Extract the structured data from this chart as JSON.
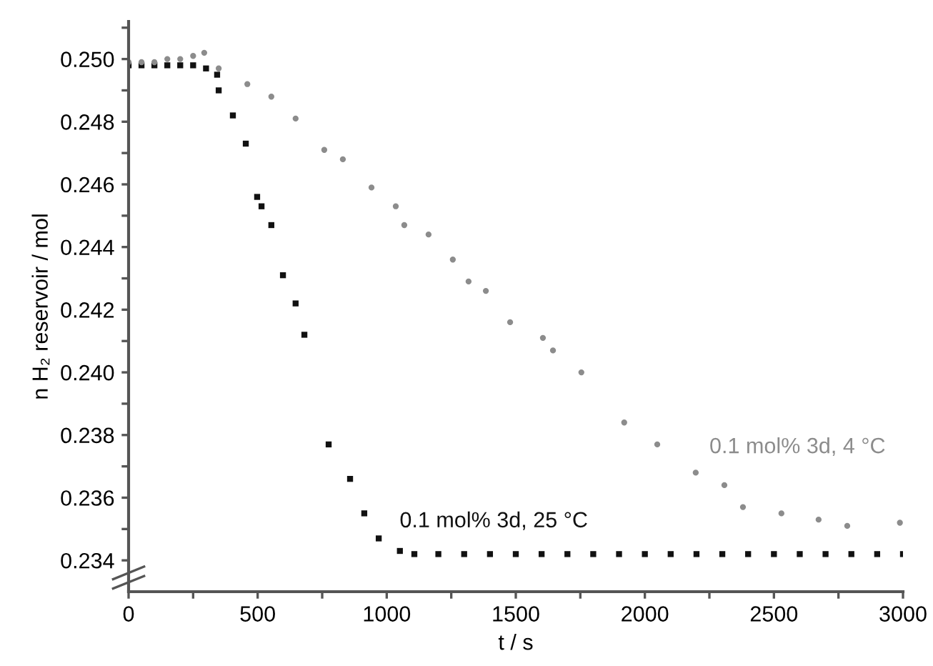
{
  "chart_data": {
    "type": "scatter",
    "xlabel": "t / s",
    "ylabel": "n H₂ reservoir / mol",
    "xlim": [
      0,
      3000
    ],
    "ylim": [
      0.233,
      0.2512
    ],
    "xticks": [
      0,
      {
        "value": 250,
        "label": null
      },
      500,
      {
        "value": 750,
        "label": null
      },
      1000,
      {
        "value": 1250,
        "label": null
      },
      1500,
      {
        "value": 1750,
        "label": null
      },
      2000,
      {
        "value": 2250,
        "label": null
      },
      2500,
      {
        "value": 2750,
        "label": null
      },
      3000
    ],
    "yticks": [
      {
        "value": 0.234,
        "label": "0.234"
      },
      {
        "value": 0.235,
        "label": null
      },
      {
        "value": 0.236,
        "label": "0.236"
      },
      {
        "value": 0.237,
        "label": null
      },
      {
        "value": 0.238,
        "label": "0.238"
      },
      {
        "value": 0.239,
        "label": null
      },
      {
        "value": 0.24,
        "label": "0.240"
      },
      {
        "value": 0.241,
        "label": null
      },
      {
        "value": 0.242,
        "label": "0.242"
      },
      {
        "value": 0.243,
        "label": null
      },
      {
        "value": 0.244,
        "label": "0.244"
      },
      {
        "value": 0.245,
        "label": null
      },
      {
        "value": 0.246,
        "label": "0.246"
      },
      {
        "value": 0.247,
        "label": null
      },
      {
        "value": 0.248,
        "label": "0.248"
      },
      {
        "value": 0.249,
        "label": null
      },
      {
        "value": 0.25,
        "label": "0.250"
      },
      {
        "value": 0.251,
        "label": null
      }
    ],
    "grid": false,
    "legend": false,
    "series": [
      {
        "name": "0.1 mol% 3d, 25 °C",
        "color": "#111111",
        "marker": "square",
        "x": [
          0,
          50,
          100,
          150,
          200,
          250,
          300,
          343,
          349,
          404,
          454,
          498,
          515,
          553,
          598,
          647,
          681,
          775,
          858,
          913,
          969,
          1051,
          1107,
          1200,
          1300,
          1400,
          1500,
          1600,
          1700,
          1800,
          1900,
          2000,
          2100,
          2200,
          2300,
          2400,
          2500,
          2600,
          2700,
          2800,
          2900,
          3000
        ],
        "values": [
          0.2498,
          0.2498,
          0.2498,
          0.2498,
          0.2498,
          0.2498,
          0.2497,
          0.2495,
          0.249,
          0.2482,
          0.2473,
          0.2456,
          0.2453,
          0.2447,
          0.2431,
          0.2422,
          0.2412,
          0.2377,
          0.2366,
          0.2355,
          0.2347,
          0.2343,
          0.2342,
          0.2342,
          0.2342,
          0.2342,
          0.2342,
          0.2342,
          0.2342,
          0.2342,
          0.2342,
          0.2342,
          0.2342,
          0.2342,
          0.2342,
          0.2342,
          0.2342,
          0.2342,
          0.2342,
          0.2342,
          0.2342,
          0.2342
        ]
      },
      {
        "name": "0.1 mol% 3d, 4 °C",
        "color": "#8c8c8c",
        "marker": "circle",
        "x": [
          0,
          50,
          100,
          150,
          200,
          250,
          293,
          349,
          460,
          553,
          647,
          758,
          830,
          941,
          1035,
          1068,
          1162,
          1256,
          1317,
          1384,
          1478,
          1605,
          1644,
          1754,
          1920,
          2048,
          2197,
          2308,
          2380,
          2529,
          2673,
          2784,
          2988
        ],
        "values": [
          0.2499,
          0.2499,
          0.2499,
          0.25,
          0.25,
          0.2501,
          0.2502,
          0.2497,
          0.2492,
          0.2488,
          0.2481,
          0.2471,
          0.2468,
          0.2459,
          0.2453,
          0.2447,
          0.2444,
          0.2436,
          0.2429,
          0.2426,
          0.2416,
          0.2411,
          0.2407,
          0.24,
          0.2384,
          0.2377,
          0.2368,
          0.2364,
          0.2357,
          0.2355,
          0.2353,
          0.2351,
          0.2352
        ]
      }
    ]
  }
}
